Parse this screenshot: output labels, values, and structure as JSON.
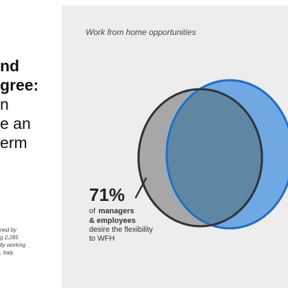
{
  "headline": {
    "lines": [
      {
        "text": "nd",
        "weight": "bold"
      },
      {
        "text": "gree:",
        "weight": "bold"
      },
      {
        "text": "n",
        "weight": "thin"
      },
      {
        "text": "e an",
        "weight": "thin"
      },
      {
        "text": "erm",
        "weight": "thin"
      }
    ]
  },
  "footnote": {
    "lines": [
      "ned by",
      "g 2,285",
      "lly working",
      ", Italy,"
    ]
  },
  "chart": {
    "title": "Work from home opportunities",
    "stat_value": "71%",
    "stat_lines": [
      {
        "text": "of",
        "weight": "normal"
      },
      {
        "text": "managers",
        "weight": "bold"
      },
      {
        "text": "& employees",
        "weight": "bold"
      },
      {
        "text": "desire the flexibility",
        "weight": "normal"
      },
      {
        "text": "to WFH",
        "weight": "normal"
      }
    ],
    "colors": {
      "panel_bg": "#ededed",
      "managers_circle": "#a7a7a7",
      "employees_circle": "#6fa8e3",
      "overlap": "#5d87a3",
      "outline_gray": "#333333",
      "outline_blue": "#1f6fc8"
    }
  }
}
